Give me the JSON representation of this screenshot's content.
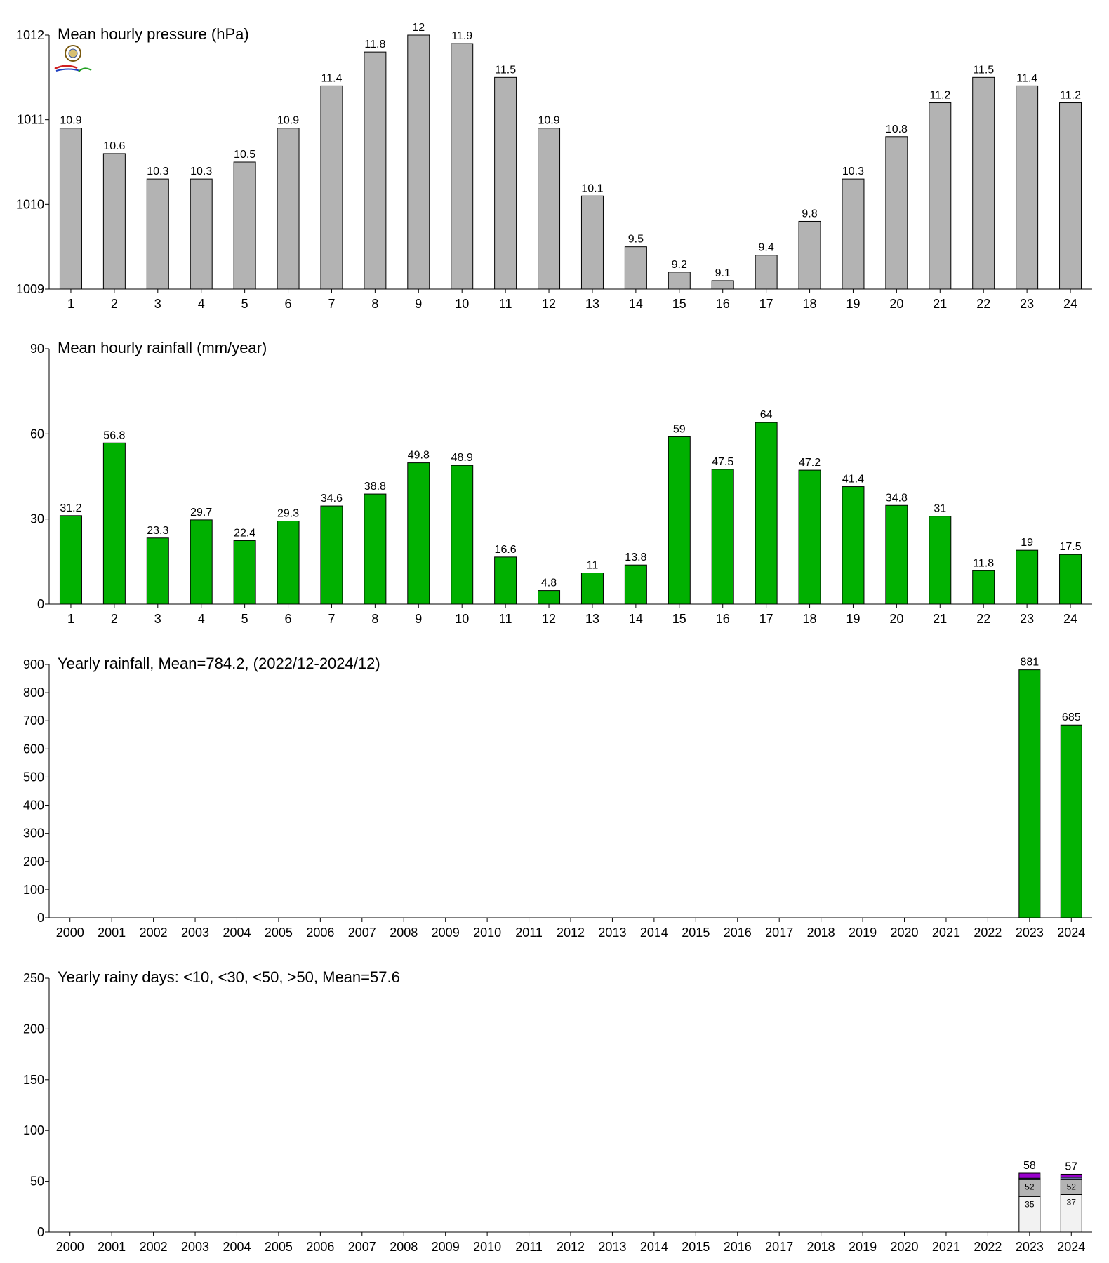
{
  "chart_data": [
    {
      "type": "bar",
      "title": "Mean hourly pressure (hPa)",
      "categories": [
        "1",
        "2",
        "3",
        "4",
        "5",
        "6",
        "7",
        "8",
        "9",
        "10",
        "11",
        "12",
        "13",
        "14",
        "15",
        "16",
        "17",
        "18",
        "19",
        "20",
        "21",
        "22",
        "23",
        "24"
      ],
      "values": [
        1010.9,
        1010.6,
        1010.3,
        1010.3,
        1010.5,
        1010.9,
        1011.4,
        1011.8,
        1012.0,
        1011.9,
        1011.5,
        1010.9,
        1010.1,
        1009.5,
        1009.2,
        1009.1,
        1009.4,
        1009.8,
        1010.3,
        1010.8,
        1011.2,
        1011.5,
        1011.4,
        1011.2
      ],
      "data_labels": [
        "10.9",
        "10.6",
        "10.3",
        "10.3",
        "10.5",
        "10.9",
        "11.4",
        "11.8",
        "12",
        "11.9",
        "11.5",
        "10.9",
        "10.1",
        "9.5",
        "9.2",
        "9.1",
        "9.4",
        "9.8",
        "10.3",
        "10.8",
        "11.2",
        "11.5",
        "11.4",
        "11.2"
      ],
      "ylim": [
        1009,
        1012
      ],
      "yticks": [
        "1009",
        "1010",
        "1011",
        "1012"
      ],
      "xlabel": "",
      "ylabel": "",
      "grid": false,
      "bar_color": "#b3b3b3"
    },
    {
      "type": "bar",
      "title": "Mean hourly rainfall (mm/year)",
      "categories": [
        "1",
        "2",
        "3",
        "4",
        "5",
        "6",
        "7",
        "8",
        "9",
        "10",
        "11",
        "12",
        "13",
        "14",
        "15",
        "16",
        "17",
        "18",
        "19",
        "20",
        "21",
        "22",
        "23",
        "24"
      ],
      "values": [
        31.2,
        56.8,
        23.3,
        29.7,
        22.4,
        29.3,
        34.6,
        38.8,
        49.8,
        48.9,
        16.6,
        4.8,
        11,
        13.8,
        59,
        47.5,
        64,
        47.2,
        41.4,
        34.8,
        31,
        11.8,
        19,
        17.5
      ],
      "data_labels": [
        "31.2",
        "56.8",
        "23.3",
        "29.7",
        "22.4",
        "29.3",
        "34.6",
        "38.8",
        "49.8",
        "48.9",
        "16.6",
        "4.8",
        "11",
        "13.8",
        "59",
        "47.5",
        "64",
        "47.2",
        "41.4",
        "34.8",
        "31",
        "11.8",
        "19",
        "17.5"
      ],
      "ylim": [
        0,
        90
      ],
      "yticks": [
        "0",
        "30",
        "60",
        "90"
      ],
      "xlabel": "",
      "ylabel": "",
      "grid": false,
      "bar_color": "#00b000"
    },
    {
      "type": "bar",
      "title": "Yearly rainfall, Mean=784.2, (2022/12-2024/12)",
      "categories": [
        "2000",
        "2001",
        "2002",
        "2003",
        "2004",
        "2005",
        "2006",
        "2007",
        "2008",
        "2009",
        "2010",
        "2011",
        "2012",
        "2013",
        "2014",
        "2015",
        "2016",
        "2017",
        "2018",
        "2019",
        "2020",
        "2021",
        "2022",
        "2023",
        "2024"
      ],
      "values": [
        null,
        null,
        null,
        null,
        null,
        null,
        null,
        null,
        null,
        null,
        null,
        null,
        null,
        null,
        null,
        null,
        null,
        null,
        null,
        null,
        null,
        null,
        null,
        881,
        685
      ],
      "data_labels": [
        "",
        "",
        "",
        "",
        "",
        "",
        "",
        "",
        "",
        "",
        "",
        "",
        "",
        "",
        "",
        "",
        "",
        "",
        "",
        "",
        "",
        "",
        "",
        "881",
        "685"
      ],
      "ylim": [
        0,
        900
      ],
      "yticks": [
        "0",
        "100",
        "200",
        "300",
        "400",
        "500",
        "600",
        "700",
        "800",
        "900"
      ],
      "xlabel": "",
      "ylabel": "",
      "grid": false,
      "bar_color": "#00b000"
    },
    {
      "type": "bar",
      "stacked": true,
      "title": "Yearly rainy days: <10, <30, <50, >50, Mean=57.6",
      "categories": [
        "2000",
        "2001",
        "2002",
        "2003",
        "2004",
        "2005",
        "2006",
        "2007",
        "2008",
        "2009",
        "2010",
        "2011",
        "2012",
        "2013",
        "2014",
        "2015",
        "2016",
        "2017",
        "2018",
        "2019",
        "2020",
        "2021",
        "2022",
        "2023",
        "2024"
      ],
      "series": [
        {
          "values": [
            null,
            null,
            null,
            null,
            null,
            null,
            null,
            null,
            null,
            null,
            null,
            null,
            null,
            null,
            null,
            null,
            null,
            null,
            null,
            null,
            null,
            null,
            null,
            35,
            37
          ],
          "labels": [
            "",
            "",
            "",
            "",
            "",
            "",
            "",
            "",
            "",
            "",
            "",
            "",
            "",
            "",
            "",
            "",
            "",
            "",
            "",
            "",
            "",
            "",
            "",
            "35",
            "37"
          ],
          "color": "#f2f2f2"
        },
        {
          "values": [
            null,
            null,
            null,
            null,
            null,
            null,
            null,
            null,
            null,
            null,
            null,
            null,
            null,
            null,
            null,
            null,
            null,
            null,
            null,
            null,
            null,
            null,
            null,
            17,
            15
          ],
          "labels": [
            "",
            "",
            "",
            "",
            "",
            "",
            "",
            "",
            "",
            "",
            "",
            "",
            "",
            "",
            "",
            "",
            "",
            "",
            "",
            "",
            "",
            "",
            "",
            "52",
            "52"
          ],
          "color": "#b3b3b3"
        },
        {
          "values": [
            null,
            null,
            null,
            null,
            null,
            null,
            null,
            null,
            null,
            null,
            null,
            null,
            null,
            null,
            null,
            null,
            null,
            null,
            null,
            null,
            null,
            null,
            null,
            1,
            2
          ],
          "labels": [],
          "color": "#6a6aa0"
        },
        {
          "values": [
            null,
            null,
            null,
            null,
            null,
            null,
            null,
            null,
            null,
            null,
            null,
            null,
            null,
            null,
            null,
            null,
            null,
            null,
            null,
            null,
            null,
            null,
            null,
            5,
            3
          ],
          "labels": [],
          "color": "#9900cc"
        }
      ],
      "totals": [
        "",
        "",
        "",
        "",
        "",
        "",
        "",
        "",
        "",
        "",
        "",
        "",
        "",
        "",
        "",
        "",
        "",
        "",
        "",
        "",
        "",
        "",
        "",
        "58",
        "57"
      ],
      "ylim": [
        0,
        250
      ],
      "yticks": [
        "0",
        "50",
        "100",
        "150",
        "200",
        "250"
      ],
      "xlabel": "",
      "ylabel": "",
      "grid": false
    }
  ]
}
